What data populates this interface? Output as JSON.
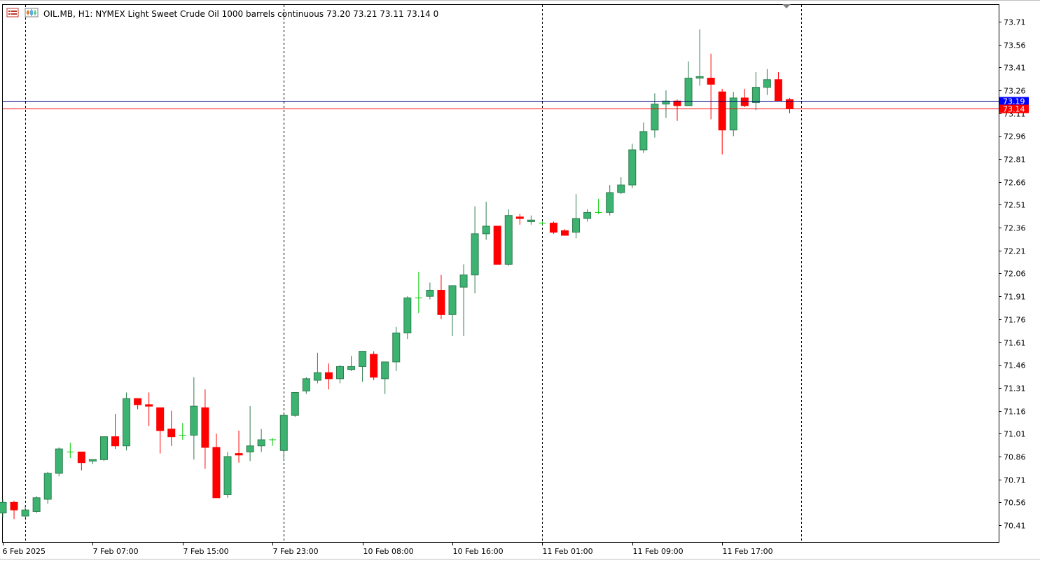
{
  "header": {
    "symbol_text": "OIL.MB, H1:  NYMEX Light Sweet Crude Oil 1000 barrels continuous  73.20 73.21 73.11 73.14  0",
    "icons": [
      "chart-list-icon",
      "chart-type-icon"
    ]
  },
  "colors": {
    "bull_fill": "#3cb371",
    "bull_border": "#2e7d4f",
    "bear": "#ff0000",
    "doji": "#00cc00",
    "bid_line": "#000080",
    "ask_line": "#ff0000",
    "bid_label_bg": "#0000ff",
    "ask_label_bg": "#ff0000",
    "grid_sep": "#000000"
  },
  "chart_data": {
    "type": "candlestick",
    "timeframe": "H1",
    "ylim": [
      70.3,
      73.82
    ],
    "y_ticks": [
      "73.71",
      "73.56",
      "73.41",
      "73.26",
      "73.11",
      "72.96",
      "72.81",
      "72.66",
      "72.51",
      "72.36",
      "72.21",
      "72.06",
      "71.91",
      "71.76",
      "71.61",
      "71.46",
      "71.31",
      "71.16",
      "71.01",
      "70.86",
      "70.71",
      "70.56",
      "70.41"
    ],
    "x_ticks": [
      {
        "label": "6 Feb 2025",
        "index": 0
      },
      {
        "label": "7 Feb 07:00",
        "index": 8
      },
      {
        "label": "7 Feb 15:00",
        "index": 16
      },
      {
        "label": "7 Feb 23:00",
        "index": 24
      },
      {
        "label": "10 Feb 08:00",
        "index": 32
      },
      {
        "label": "10 Feb 16:00",
        "index": 40
      },
      {
        "label": "11 Feb 01:00",
        "index": 48
      },
      {
        "label": "11 Feb 09:00",
        "index": 56
      },
      {
        "label": "11 Feb 17:00",
        "index": 64
      }
    ],
    "day_separators": [
      2,
      25,
      48,
      71
    ],
    "bid_price": "73.19",
    "ask_price": "73.14",
    "candles": [
      [
        70.49,
        70.58,
        70.46,
        70.56
      ],
      [
        70.56,
        70.57,
        70.45,
        70.51
      ],
      [
        70.47,
        70.54,
        70.46,
        70.51
      ],
      [
        70.5,
        70.6,
        70.49,
        70.59
      ],
      [
        70.58,
        70.76,
        70.55,
        70.75
      ],
      [
        70.75,
        70.92,
        70.73,
        70.91
      ],
      [
        70.89,
        70.95,
        70.85,
        70.89
      ],
      [
        70.89,
        70.89,
        70.77,
        70.82
      ],
      [
        70.83,
        70.84,
        70.81,
        70.84
      ],
      [
        70.84,
        70.99,
        70.83,
        70.99
      ],
      [
        70.99,
        71.14,
        70.91,
        70.93
      ],
      [
        70.93,
        71.28,
        70.9,
        71.24
      ],
      [
        71.24,
        71.24,
        71.17,
        71.2
      ],
      [
        71.2,
        71.28,
        71.06,
        71.19
      ],
      [
        71.18,
        71.18,
        70.88,
        71.03
      ],
      [
        71.04,
        71.16,
        70.93,
        70.99
      ],
      [
        71.0,
        71.08,
        70.97,
        71.0
      ],
      [
        71.0,
        71.38,
        70.84,
        71.19
      ],
      [
        71.18,
        71.3,
        70.78,
        70.92
      ],
      [
        70.92,
        71.01,
        70.59,
        70.59
      ],
      [
        70.61,
        70.89,
        70.59,
        70.86
      ],
      [
        70.88,
        71.03,
        70.82,
        70.87
      ],
      [
        70.89,
        71.19,
        70.83,
        70.93
      ],
      [
        70.93,
        71.04,
        70.89,
        70.97
      ],
      [
        70.97,
        70.98,
        70.93,
        70.97
      ],
      [
        70.9,
        71.14,
        70.83,
        71.13
      ],
      [
        71.13,
        71.28,
        71.12,
        71.28
      ],
      [
        71.29,
        71.38,
        71.27,
        71.37
      ],
      [
        71.36,
        71.54,
        71.34,
        71.41
      ],
      [
        71.41,
        71.47,
        71.3,
        71.37
      ],
      [
        71.37,
        71.46,
        71.34,
        71.45
      ],
      [
        71.43,
        71.52,
        71.42,
        71.45
      ],
      [
        71.45,
        71.55,
        71.35,
        71.55
      ],
      [
        71.53,
        71.55,
        71.36,
        71.38
      ],
      [
        71.37,
        71.48,
        71.27,
        71.48
      ],
      [
        71.48,
        71.71,
        71.42,
        71.67
      ],
      [
        71.67,
        71.91,
        71.63,
        71.9
      ],
      [
        71.9,
        72.07,
        71.8,
        71.9
      ],
      [
        71.91,
        72.0,
        71.89,
        71.95
      ],
      [
        71.95,
        72.05,
        71.76,
        71.79
      ],
      [
        71.79,
        71.97,
        71.65,
        71.98
      ],
      [
        71.97,
        72.12,
        71.65,
        72.05
      ],
      [
        72.05,
        72.5,
        71.93,
        72.32
      ],
      [
        72.32,
        72.53,
        72.28,
        72.37
      ],
      [
        72.37,
        72.37,
        72.12,
        72.12
      ],
      [
        72.12,
        72.48,
        72.11,
        72.44
      ],
      [
        72.43,
        72.45,
        72.38,
        72.42
      ],
      [
        72.4,
        72.44,
        72.38,
        72.41
      ],
      [
        72.39,
        72.4,
        72.38,
        72.39
      ],
      [
        72.39,
        72.4,
        72.32,
        72.33
      ],
      [
        72.34,
        72.35,
        72.31,
        72.31
      ],
      [
        72.33,
        72.58,
        72.29,
        72.42
      ],
      [
        72.42,
        72.48,
        72.4,
        72.46
      ],
      [
        72.46,
        72.55,
        72.45,
        72.46
      ],
      [
        72.46,
        72.64,
        72.44,
        72.59
      ],
      [
        72.59,
        72.69,
        72.58,
        72.64
      ],
      [
        72.64,
        72.91,
        72.62,
        72.87
      ],
      [
        72.87,
        73.05,
        72.85,
        72.99
      ],
      [
        73.0,
        73.24,
        72.95,
        73.17
      ],
      [
        73.17,
        73.26,
        73.08,
        73.19
      ],
      [
        73.19,
        73.2,
        73.06,
        73.16
      ],
      [
        73.16,
        73.45,
        73.16,
        73.34
      ],
      [
        73.34,
        73.66,
        73.29,
        73.35
      ],
      [
        73.34,
        73.5,
        73.07,
        73.3
      ],
      [
        73.25,
        73.27,
        72.84,
        73.0
      ],
      [
        73.0,
        73.25,
        72.96,
        73.21
      ],
      [
        73.21,
        73.27,
        73.15,
        73.16
      ],
      [
        73.18,
        73.38,
        73.13,
        73.28
      ],
      [
        73.28,
        73.4,
        73.23,
        73.33
      ],
      [
        73.33,
        73.38,
        73.19,
        73.19
      ],
      [
        73.2,
        73.21,
        73.11,
        73.14
      ]
    ]
  }
}
